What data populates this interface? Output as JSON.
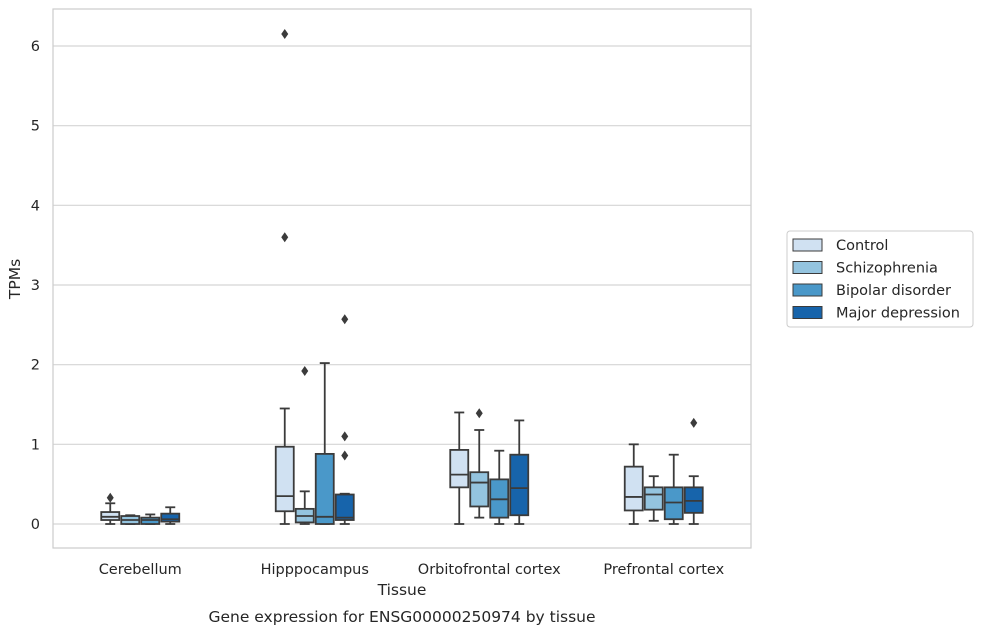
{
  "chart_data": {
    "type": "box",
    "title": "Gene expression for ENSG00000250974 by tissue",
    "xlabel": "Tissue",
    "ylabel": "TPMs",
    "ylim": [
      -0.3,
      6.5
    ],
    "yticks": [
      0,
      1,
      2,
      3,
      4,
      5,
      6
    ],
    "grid": "horizontal",
    "legend": "right",
    "categories": [
      "Cerebellum",
      "Hipppocampus",
      "Orbitofrontal cortex",
      "Prefrontal cortex"
    ],
    "series": [
      {
        "name": "Control",
        "color": "#d0e1f2",
        "boxes": [
          {
            "q1": 0.05,
            "median": 0.09,
            "q3": 0.15,
            "whislo": 0.0,
            "whishi": 0.26,
            "fliers": [
              0.33
            ]
          },
          {
            "q1": 0.16,
            "median": 0.35,
            "q3": 0.97,
            "whislo": 0.0,
            "whishi": 1.45,
            "fliers": [
              3.6,
              6.15
            ]
          },
          {
            "q1": 0.46,
            "median": 0.62,
            "q3": 0.93,
            "whislo": 0.0,
            "whishi": 1.4,
            "fliers": []
          },
          {
            "q1": 0.17,
            "median": 0.34,
            "q3": 0.72,
            "whislo": 0.0,
            "whishi": 1.0,
            "fliers": []
          }
        ]
      },
      {
        "name": "Schizophrenia",
        "color": "#94c4df",
        "boxes": [
          {
            "q1": 0.0,
            "median": 0.05,
            "q3": 0.1,
            "whislo": 0.0,
            "whishi": 0.11,
            "fliers": []
          },
          {
            "q1": 0.02,
            "median": 0.1,
            "q3": 0.19,
            "whislo": 0.0,
            "whishi": 0.41,
            "fliers": [
              1.92
            ]
          },
          {
            "q1": 0.22,
            "median": 0.52,
            "q3": 0.65,
            "whislo": 0.08,
            "whishi": 1.18,
            "fliers": [
              1.39
            ]
          },
          {
            "q1": 0.18,
            "median": 0.37,
            "q3": 0.46,
            "whislo": 0.04,
            "whishi": 0.6,
            "fliers": []
          }
        ]
      },
      {
        "name": "Bipolar disorder",
        "color": "#4a98c9",
        "boxes": [
          {
            "q1": 0.0,
            "median": 0.05,
            "q3": 0.08,
            "whislo": 0.0,
            "whishi": 0.12,
            "fliers": []
          },
          {
            "q1": 0.0,
            "median": 0.09,
            "q3": 0.88,
            "whislo": 0.0,
            "whishi": 2.02,
            "fliers": []
          },
          {
            "q1": 0.08,
            "median": 0.31,
            "q3": 0.56,
            "whislo": 0.0,
            "whishi": 0.92,
            "fliers": []
          },
          {
            "q1": 0.06,
            "median": 0.27,
            "q3": 0.46,
            "whislo": 0.0,
            "whishi": 0.87,
            "fliers": []
          }
        ]
      },
      {
        "name": "Major depression",
        "color": "#1764ab",
        "boxes": [
          {
            "q1": 0.03,
            "median": 0.06,
            "q3": 0.13,
            "whislo": 0.0,
            "whishi": 0.21,
            "fliers": []
          },
          {
            "q1": 0.05,
            "median": 0.08,
            "q3": 0.37,
            "whislo": 0.0,
            "whishi": 0.38,
            "fliers": [
              0.86,
              1.1,
              2.57
            ]
          },
          {
            "q1": 0.11,
            "median": 0.45,
            "q3": 0.87,
            "whislo": 0.0,
            "whishi": 1.3,
            "fliers": []
          },
          {
            "q1": 0.14,
            "median": 0.29,
            "q3": 0.46,
            "whislo": 0.0,
            "whishi": 0.6,
            "fliers": [
              1.27
            ]
          }
        ]
      }
    ]
  }
}
